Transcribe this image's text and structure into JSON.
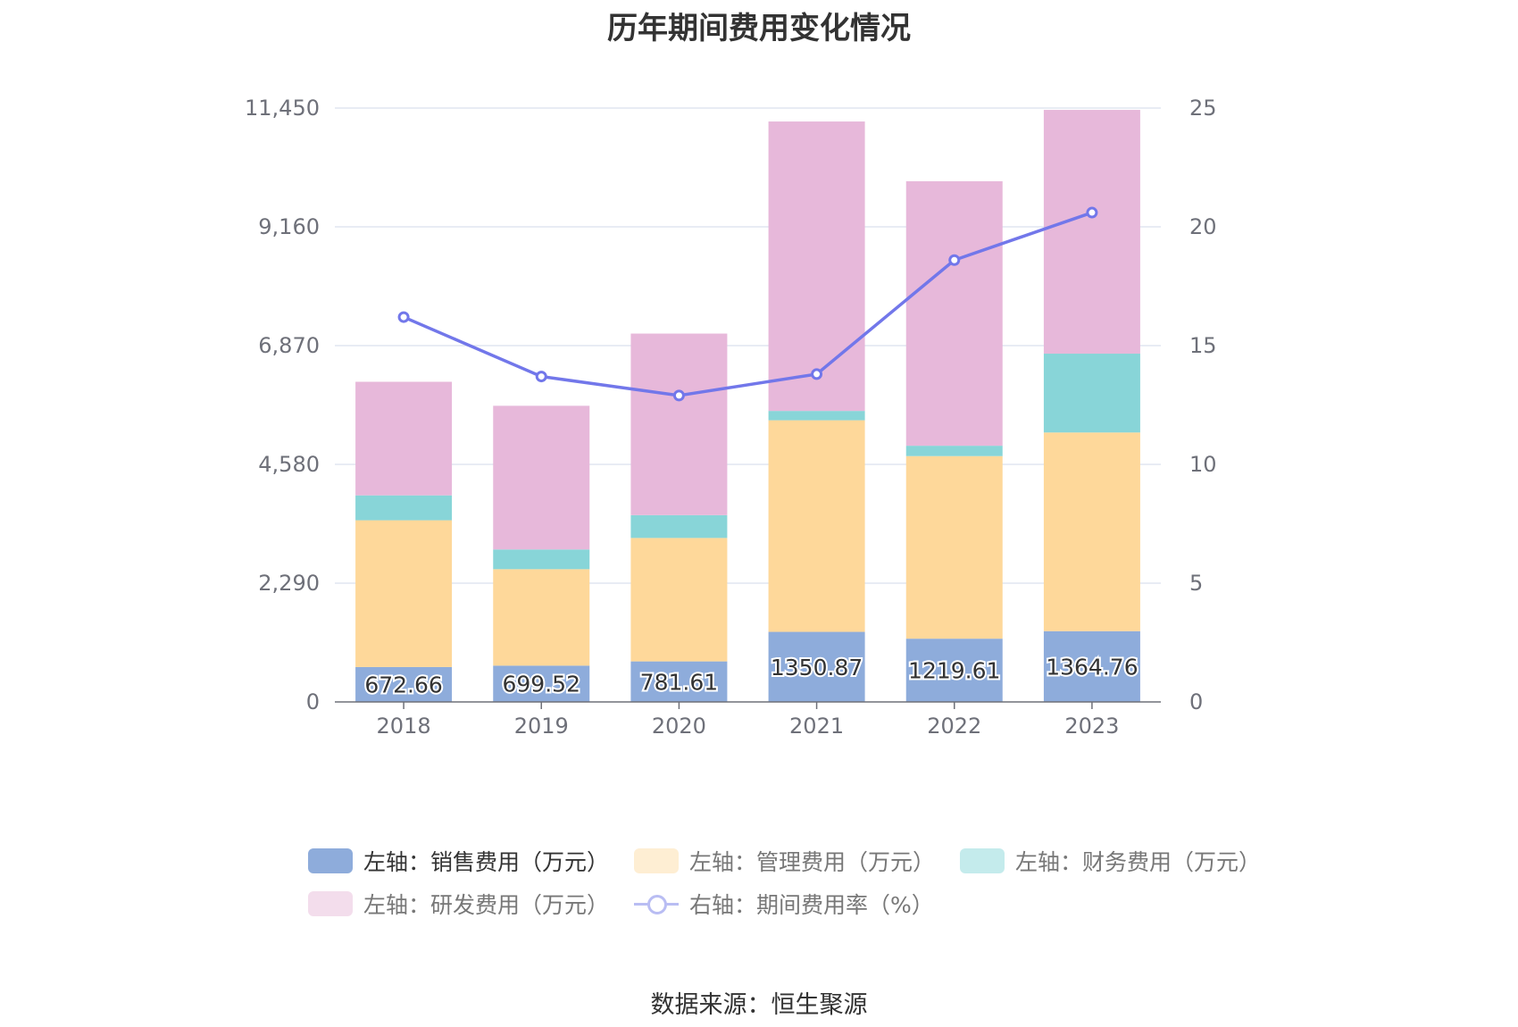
{
  "chart_data": {
    "type": "bar",
    "title": "历年期间费用变化情况",
    "categories": [
      "2018",
      "2019",
      "2020",
      "2021",
      "2022",
      "2023"
    ],
    "series": [
      {
        "name": "左轴：销售费用（万元）",
        "axis": "left",
        "color": "#8eacdb",
        "values": [
          672.66,
          699.52,
          781.61,
          1350.87,
          1219.61,
          1364.76
        ],
        "labels": [
          "672.66",
          "699.52",
          "781.61",
          "1350.87",
          "1219.61",
          "1364.76"
        ]
      },
      {
        "name": "左轴：管理费用（万元）",
        "axis": "left",
        "color": "#fed89a",
        "values": [
          2830,
          1860,
          2380,
          4080,
          3520,
          3830
        ]
      },
      {
        "name": "左轴：财务费用（万元）",
        "axis": "left",
        "color": "#88d5d8",
        "values": [
          480,
          380,
          440,
          180,
          200,
          1520
        ]
      },
      {
        "name": "左轴：研发费用（万元）",
        "axis": "left",
        "color": "#e7b8da",
        "values": [
          2190,
          2770,
          3500,
          5580,
          5100,
          4700
        ]
      },
      {
        "name": "右轴：期间费用率（%）",
        "axis": "right",
        "type": "line",
        "color": "#7277ea",
        "values": [
          16.2,
          13.7,
          12.9,
          13.8,
          18.6,
          20.6
        ]
      }
    ],
    "left_axis": {
      "ticks": [
        0,
        2290,
        4580,
        6870,
        9160,
        11450
      ],
      "tick_labels": [
        "0",
        "2,290",
        "4,580",
        "6,870",
        "9,160",
        "11,450"
      ],
      "range": [
        0,
        11450
      ]
    },
    "right_axis": {
      "ticks": [
        0,
        5,
        10,
        15,
        20,
        25
      ],
      "tick_labels": [
        "0",
        "5",
        "10",
        "15",
        "20",
        "25"
      ],
      "range": [
        0,
        25
      ]
    },
    "legend_position": "bottom",
    "grid": true
  },
  "source": "数据来源：恒生聚源"
}
